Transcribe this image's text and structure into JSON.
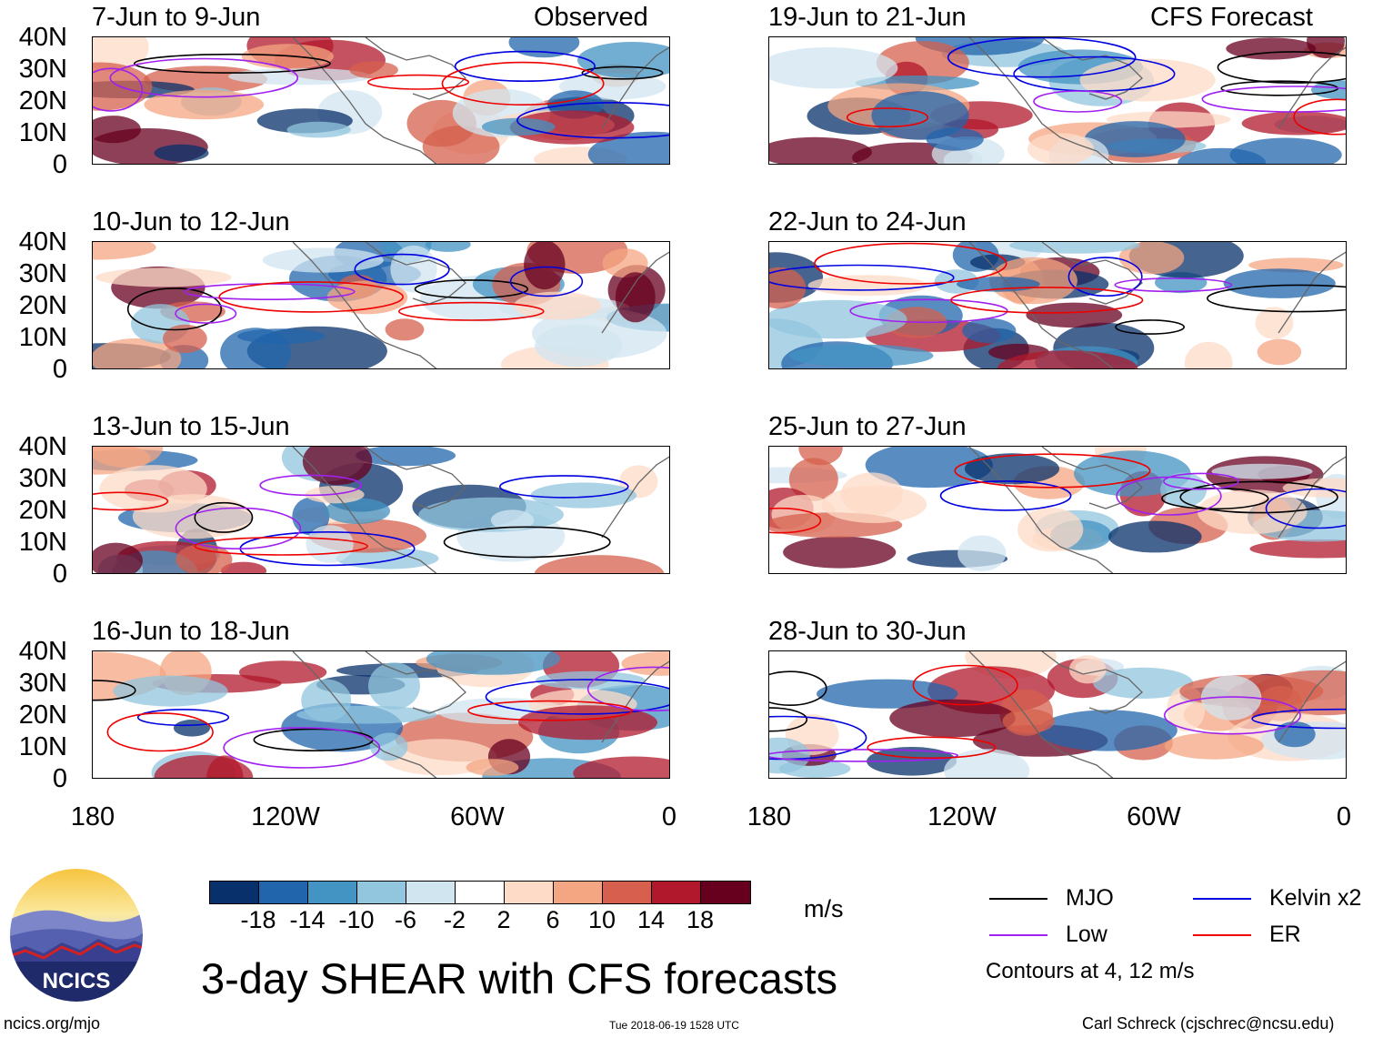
{
  "observed_label": "Observed",
  "forecast_label": "CFS Forecast",
  "panels": [
    {
      "title": "7-Jun to 9-Jun"
    },
    {
      "title": "10-Jun to 12-Jun"
    },
    {
      "title": "13-Jun to 15-Jun"
    },
    {
      "title": "16-Jun to 18-Jun"
    },
    {
      "title": "19-Jun to 21-Jun"
    },
    {
      "title": "22-Jun to 24-Jun"
    },
    {
      "title": "25-Jun to 27-Jun"
    },
    {
      "title": "28-Jun to 30-Jun"
    }
  ],
  "lat_labels": [
    "40N",
    "30N",
    "20N",
    "10N",
    "0"
  ],
  "lon_labels": [
    "180",
    "120W",
    "60W",
    "0"
  ],
  "colorbar": {
    "colors": [
      "#08306b",
      "#2166ac",
      "#4393c3",
      "#92c5de",
      "#d1e5f0",
      "#ffffff",
      "#fddbc7",
      "#f4a582",
      "#d6604d",
      "#b2182b",
      "#67001f"
    ],
    "labels": [
      "-18",
      "-14",
      "-10",
      "-6",
      "-2",
      "2",
      "6",
      "10",
      "14",
      "18"
    ],
    "units": "m/s"
  },
  "legend": {
    "mjo": "MJO",
    "kelvin": "Kelvin x2",
    "low": "Low",
    "er": "ER",
    "contours_note": "Contours at 4, 12 m/s",
    "colors": {
      "mjo": "#000000",
      "kelvin": "#0000e0",
      "low": "#a020f0",
      "er": "#ee0000"
    }
  },
  "title": "3-day SHEAR with CFS forecasts",
  "footer": {
    "url": "ncics.org/mjo",
    "timestamp": "Tue 2018-06-19 1528 UTC",
    "author": "Carl Schreck (cjschrec@ncsu.edu)"
  },
  "logo": {
    "text": "NCICS"
  }
}
